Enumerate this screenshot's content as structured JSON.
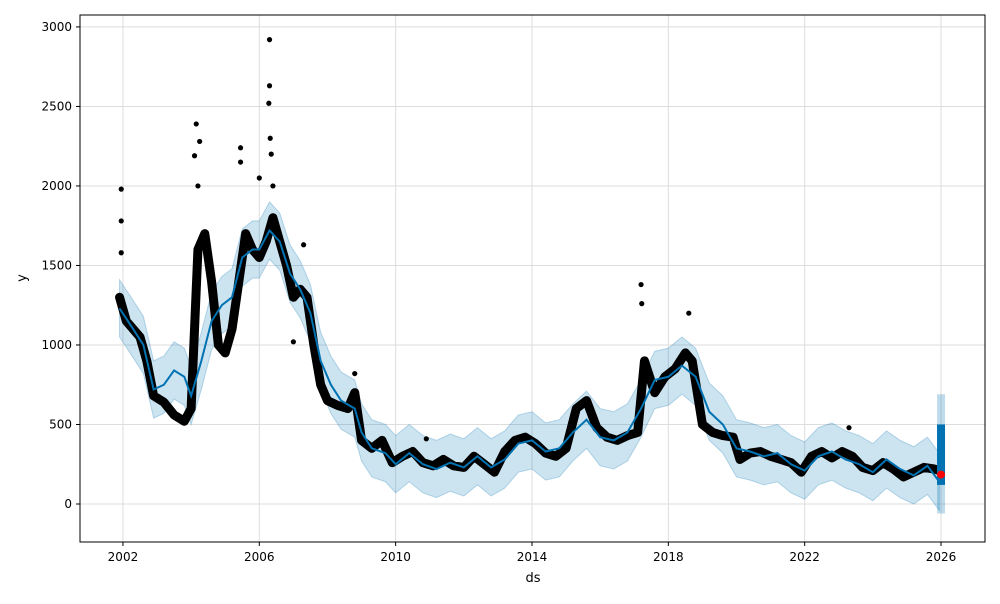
{
  "chart_data": {
    "type": "line",
    "title": "",
    "xlabel": "ds",
    "ylabel": "y",
    "xlim": [
      2000.74,
      2027.29
    ],
    "ylim": [
      -239,
      3075
    ],
    "grid": true,
    "x_ticks": [
      2002,
      2006,
      2010,
      2014,
      2018,
      2022,
      2026
    ],
    "y_ticks": [
      0,
      500,
      1000,
      1500,
      2000,
      2500,
      3000
    ],
    "colors": {
      "forecast": "#0072B2",
      "band": "#0072B2",
      "observed": "#000000",
      "highlight": "#ff0000"
    },
    "uncertainty_halfwidth": 180,
    "forecast": [
      [
        2001.9,
        1230
      ],
      [
        2002.3,
        1100
      ],
      [
        2002.6,
        1000
      ],
      [
        2002.9,
        720
      ],
      [
        2003.2,
        750
      ],
      [
        2003.5,
        840
      ],
      [
        2003.8,
        800
      ],
      [
        2004.0,
        680
      ],
      [
        2004.3,
        900
      ],
      [
        2004.6,
        1150
      ],
      [
        2004.9,
        1250
      ],
      [
        2005.2,
        1300
      ],
      [
        2005.5,
        1550
      ],
      [
        2005.8,
        1600
      ],
      [
        2006.0,
        1600
      ],
      [
        2006.3,
        1720
      ],
      [
        2006.6,
        1650
      ],
      [
        2006.9,
        1450
      ],
      [
        2007.2,
        1350
      ],
      [
        2007.5,
        1200
      ],
      [
        2007.8,
        900
      ],
      [
        2008.1,
        750
      ],
      [
        2008.4,
        650
      ],
      [
        2008.8,
        600
      ],
      [
        2009.0,
        450
      ],
      [
        2009.3,
        350
      ],
      [
        2009.7,
        320
      ],
      [
        2010.0,
        250
      ],
      [
        2010.4,
        320
      ],
      [
        2010.8,
        250
      ],
      [
        2011.2,
        220
      ],
      [
        2011.6,
        260
      ],
      [
        2012.0,
        230
      ],
      [
        2012.4,
        300
      ],
      [
        2012.8,
        230
      ],
      [
        2013.2,
        280
      ],
      [
        2013.6,
        380
      ],
      [
        2014.0,
        400
      ],
      [
        2014.4,
        330
      ],
      [
        2014.8,
        350
      ],
      [
        2015.2,
        450
      ],
      [
        2015.6,
        530
      ],
      [
        2016.0,
        420
      ],
      [
        2016.4,
        400
      ],
      [
        2016.8,
        450
      ],
      [
        2017.2,
        600
      ],
      [
        2017.6,
        780
      ],
      [
        2018.0,
        800
      ],
      [
        2018.4,
        870
      ],
      [
        2018.8,
        800
      ],
      [
        2019.2,
        580
      ],
      [
        2019.6,
        500
      ],
      [
        2020.0,
        350
      ],
      [
        2020.4,
        330
      ],
      [
        2020.8,
        300
      ],
      [
        2021.2,
        320
      ],
      [
        2021.6,
        250
      ],
      [
        2022.0,
        210
      ],
      [
        2022.4,
        300
      ],
      [
        2022.8,
        330
      ],
      [
        2023.2,
        280
      ],
      [
        2023.6,
        250
      ],
      [
        2024.0,
        200
      ],
      [
        2024.4,
        280
      ],
      [
        2024.8,
        220
      ],
      [
        2025.2,
        180
      ],
      [
        2025.6,
        240
      ],
      [
        2025.95,
        140
      ]
    ],
    "observed": [
      [
        2001.9,
        1300
      ],
      [
        2002.1,
        1150
      ],
      [
        2002.3,
        1100
      ],
      [
        2002.5,
        1050
      ],
      [
        2002.7,
        900
      ],
      [
        2002.9,
        680
      ],
      [
        2003.2,
        640
      ],
      [
        2003.5,
        560
      ],
      [
        2003.8,
        520
      ],
      [
        2004.0,
        600
      ],
      [
        2004.2,
        1600
      ],
      [
        2004.4,
        1700
      ],
      [
        2004.6,
        1400
      ],
      [
        2004.8,
        1000
      ],
      [
        2005.0,
        950
      ],
      [
        2005.2,
        1100
      ],
      [
        2005.4,
        1400
      ],
      [
        2005.6,
        1700
      ],
      [
        2005.8,
        1600
      ],
      [
        2006.0,
        1550
      ],
      [
        2006.2,
        1650
      ],
      [
        2006.4,
        1800
      ],
      [
        2006.6,
        1650
      ],
      [
        2006.8,
        1500
      ],
      [
        2007.0,
        1300
      ],
      [
        2007.2,
        1350
      ],
      [
        2007.4,
        1300
      ],
      [
        2007.6,
        1000
      ],
      [
        2007.8,
        750
      ],
      [
        2008.0,
        650
      ],
      [
        2008.3,
        620
      ],
      [
        2008.6,
        600
      ],
      [
        2008.8,
        700
      ],
      [
        2009.0,
        400
      ],
      [
        2009.3,
        350
      ],
      [
        2009.6,
        400
      ],
      [
        2009.9,
        260
      ],
      [
        2010.2,
        300
      ],
      [
        2010.5,
        330
      ],
      [
        2010.8,
        260
      ],
      [
        2011.1,
        240
      ],
      [
        2011.4,
        280
      ],
      [
        2011.7,
        240
      ],
      [
        2012.0,
        230
      ],
      [
        2012.3,
        300
      ],
      [
        2012.6,
        250
      ],
      [
        2012.9,
        200
      ],
      [
        2013.2,
        330
      ],
      [
        2013.5,
        400
      ],
      [
        2013.8,
        420
      ],
      [
        2014.1,
        380
      ],
      [
        2014.4,
        320
      ],
      [
        2014.7,
        300
      ],
      [
        2015.0,
        350
      ],
      [
        2015.3,
        600
      ],
      [
        2015.6,
        650
      ],
      [
        2015.9,
        480
      ],
      [
        2016.2,
        420
      ],
      [
        2016.5,
        400
      ],
      [
        2016.8,
        430
      ],
      [
        2017.1,
        450
      ],
      [
        2017.3,
        900
      ],
      [
        2017.6,
        700
      ],
      [
        2017.9,
        800
      ],
      [
        2018.2,
        850
      ],
      [
        2018.5,
        950
      ],
      [
        2018.7,
        900
      ],
      [
        2019.0,
        500
      ],
      [
        2019.3,
        450
      ],
      [
        2019.6,
        430
      ],
      [
        2019.9,
        420
      ],
      [
        2020.1,
        280
      ],
      [
        2020.4,
        320
      ],
      [
        2020.7,
        330
      ],
      [
        2021.0,
        300
      ],
      [
        2021.3,
        280
      ],
      [
        2021.6,
        260
      ],
      [
        2021.9,
        200
      ],
      [
        2022.2,
        300
      ],
      [
        2022.5,
        330
      ],
      [
        2022.8,
        290
      ],
      [
        2023.1,
        330
      ],
      [
        2023.4,
        300
      ],
      [
        2023.7,
        230
      ],
      [
        2024.0,
        210
      ],
      [
        2024.3,
        260
      ],
      [
        2024.6,
        220
      ],
      [
        2024.9,
        170
      ],
      [
        2025.2,
        200
      ],
      [
        2025.5,
        230
      ],
      [
        2025.8,
        220
      ],
      [
        2025.95,
        210
      ]
    ],
    "outliers": [
      [
        2001.95,
        1980
      ],
      [
        2001.95,
        1780
      ],
      [
        2001.95,
        1580
      ],
      [
        2004.15,
        2390
      ],
      [
        2004.25,
        2280
      ],
      [
        2004.1,
        2190
      ],
      [
        2004.2,
        2000
      ],
      [
        2005.45,
        2240
      ],
      [
        2005.45,
        2150
      ],
      [
        2006.0,
        2050
      ],
      [
        2006.3,
        2920
      ],
      [
        2006.3,
        2630
      ],
      [
        2006.28,
        2520
      ],
      [
        2006.32,
        2300
      ],
      [
        2006.35,
        2200
      ],
      [
        2006.4,
        2000
      ],
      [
        2007.0,
        1020
      ],
      [
        2007.3,
        1630
      ],
      [
        2010.9,
        410
      ],
      [
        2017.2,
        1380
      ],
      [
        2017.22,
        1260
      ],
      [
        2018.6,
        1200
      ],
      [
        2023.3,
        480
      ],
      [
        2008.8,
        820
      ]
    ],
    "forecast_period": {
      "x": 2026.0,
      "yhat_range": [
        120,
        500
      ],
      "band_range": [
        -60,
        690
      ]
    },
    "last_point": [
      2026.0,
      185
    ]
  }
}
